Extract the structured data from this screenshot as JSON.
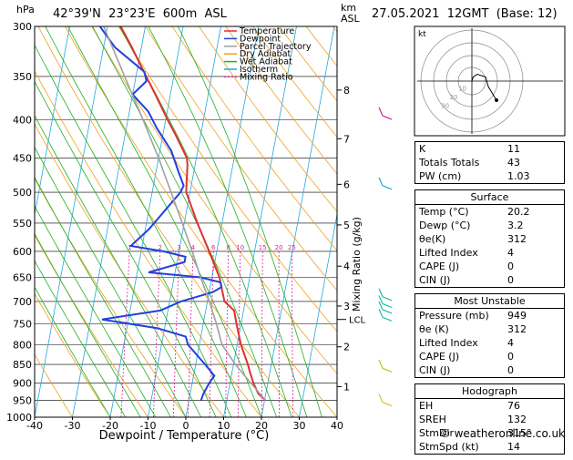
{
  "header": {
    "location": "42°39'N  23°23'E  600m  ASL",
    "datetime": "27.05.2021  12GMT  (Base: 12)",
    "y_unit": "hPa",
    "km_label": "km\nASL",
    "x_axis_title": "Dewpoint / Temperature (°C)",
    "mixing_axis_title": "Mixing Ratio (g/kg)",
    "credit": "© weatheronline.co.uk",
    "hodo_unit": "kt"
  },
  "colors": {
    "temperature": "#e03030",
    "dewpoint": "#2040e0",
    "parcel": "#a0a0a0",
    "dry_adiabat": "#f0a020",
    "wet_adiabat": "#20b020",
    "isotherm": "#20a8e0",
    "mixing_ratio": "#e020a0"
  },
  "legend": [
    {
      "label": "Temperature",
      "key": "temperature",
      "dash": false
    },
    {
      "label": "Dewpoint",
      "key": "dewpoint",
      "dash": false
    },
    {
      "label": "Parcel Trajectory",
      "key": "parcel",
      "dash": false
    },
    {
      "label": "Dry Adiabat",
      "key": "dry_adiabat",
      "dash": false
    },
    {
      "label": "Wet Adiabat",
      "key": "wet_adiabat",
      "dash": false
    },
    {
      "label": "Isotherm",
      "key": "isotherm",
      "dash": false
    },
    {
      "label": "Mixing Ratio",
      "key": "mixing_ratio",
      "dash": true
    }
  ],
  "chart_data": {
    "type": "line",
    "xlim": [
      -40,
      40
    ],
    "ylim": [
      1000,
      300
    ],
    "y_scale": "log",
    "pressure_ticks": [
      300,
      350,
      400,
      450,
      500,
      550,
      600,
      650,
      700,
      750,
      800,
      850,
      900,
      950,
      1000
    ],
    "temp_ticks": [
      -40,
      -30,
      -20,
      -10,
      0,
      10,
      20,
      30,
      40
    ],
    "km_ticks": [
      {
        "km": "1",
        "p": 910
      },
      {
        "km": "2",
        "p": 805
      },
      {
        "km": "3",
        "p": 710
      },
      {
        "km": "4",
        "p": 628
      },
      {
        "km": "5",
        "p": 553
      },
      {
        "km": "6",
        "p": 488
      },
      {
        "km": "7",
        "p": 424
      },
      {
        "km": "8",
        "p": 365
      }
    ],
    "lcl": {
      "label": "LCL",
      "p": 740
    },
    "mixing_ratio_labels": [
      "1",
      "2",
      "3",
      "4",
      "6",
      "8",
      "10",
      "15",
      "20",
      "25"
    ],
    "mixing_ratio_values": [
      1,
      2,
      3,
      4,
      6,
      8,
      10,
      15,
      20,
      25
    ],
    "series": [
      {
        "name": "Temperature",
        "key": "temperature",
        "points": [
          [
            949,
            20.2
          ],
          [
            930,
            18
          ],
          [
            900,
            16.2
          ],
          [
            870,
            14.7
          ],
          [
            850,
            13.8
          ],
          [
            800,
            11.0
          ],
          [
            750,
            8.8
          ],
          [
            720,
            7.5
          ],
          [
            700,
            4.5
          ],
          [
            650,
            2.0
          ],
          [
            600,
            -2.0
          ],
          [
            550,
            -6.5
          ],
          [
            500,
            -11.0
          ],
          [
            480,
            -11.5
          ],
          [
            460,
            -12.0
          ],
          [
            450,
            -12.5
          ],
          [
            420,
            -16.5
          ],
          [
            400,
            -19.5
          ],
          [
            370,
            -24.0
          ],
          [
            340,
            -29.0
          ],
          [
            320,
            -32.5
          ],
          [
            300,
            -36.5
          ]
        ]
      },
      {
        "name": "Dewpoint",
        "key": "dewpoint",
        "points": [
          [
            949,
            3.2
          ],
          [
            930,
            3.5
          ],
          [
            900,
            4.5
          ],
          [
            880,
            5.5
          ],
          [
            850,
            2.5
          ],
          [
            800,
            -3.0
          ],
          [
            780,
            -4.0
          ],
          [
            760,
            -12.0
          ],
          [
            740,
            -27.0
          ],
          [
            720,
            -12.0
          ],
          [
            700,
            -7.0
          ],
          [
            690,
            -3.0
          ],
          [
            680,
            1.0
          ],
          [
            670,
            3.0
          ],
          [
            660,
            2.5
          ],
          [
            650,
            -3.0
          ],
          [
            640,
            -17.0
          ],
          [
            620,
            -8.0
          ],
          [
            610,
            -8.0
          ],
          [
            600,
            -14.0
          ],
          [
            590,
            -23.0
          ],
          [
            560,
            -19.0
          ],
          [
            500,
            -12.5
          ],
          [
            490,
            -12.0
          ],
          [
            470,
            -14.0
          ],
          [
            440,
            -17.0
          ],
          [
            410,
            -22.0
          ],
          [
            390,
            -25.0
          ],
          [
            370,
            -30.0
          ],
          [
            355,
            -27.0
          ],
          [
            345,
            -28.0
          ],
          [
            320,
            -37.0
          ],
          [
            300,
            -42.0
          ]
        ]
      },
      {
        "name": "Parcel Trajectory",
        "key": "parcel",
        "points": [
          [
            949,
            20.2
          ],
          [
            900,
            15.5
          ],
          [
            850,
            10.5
          ],
          [
            800,
            6.0
          ],
          [
            750,
            3.5
          ],
          [
            700,
            0.5
          ],
          [
            650,
            -3.0
          ],
          [
            600,
            -6.5
          ],
          [
            550,
            -10.5
          ],
          [
            500,
            -15.0
          ],
          [
            450,
            -20.0
          ],
          [
            400,
            -26.0
          ],
          [
            350,
            -33.0
          ],
          [
            300,
            -41.0
          ]
        ]
      }
    ],
    "wind_barbs": [
      {
        "p": 395,
        "color": "#d020a0"
      },
      {
        "p": 490,
        "color": "#20a8d0"
      },
      {
        "p": 690,
        "color": "#20c0a0"
      },
      {
        "p": 705,
        "color": "#20c0a0"
      },
      {
        "p": 718,
        "color": "#20c0a0"
      },
      {
        "p": 735,
        "color": "#20c0a0"
      },
      {
        "p": 860,
        "color": "#a0d020"
      },
      {
        "p": 955,
        "color": "#e0c020"
      }
    ]
  },
  "hodograph": {
    "ring_labels": [
      "10",
      "20",
      "30"
    ],
    "points": [
      [
        0,
        0
      ],
      [
        1,
        3
      ],
      [
        4,
        5
      ],
      [
        10,
        3
      ],
      [
        12,
        -4
      ],
      [
        18,
        -14
      ]
    ]
  },
  "indices": [
    {
      "label": "K",
      "value": "11"
    },
    {
      "label": "Totals Totals",
      "value": "43"
    },
    {
      "label": "PW (cm)",
      "value": "1.03"
    }
  ],
  "surface": {
    "title": "Surface",
    "rows": [
      {
        "label": "Temp (°C)",
        "value": "20.2"
      },
      {
        "label": "Dewp (°C)",
        "value": "3.2"
      },
      {
        "label": "θe(K)",
        "value": "312"
      },
      {
        "label": "Lifted Index",
        "value": "4"
      },
      {
        "label": "CAPE (J)",
        "value": "0"
      },
      {
        "label": "CIN (J)",
        "value": "0"
      }
    ]
  },
  "most_unstable": {
    "title": "Most Unstable",
    "rows": [
      {
        "label": "Pressure (mb)",
        "value": "949"
      },
      {
        "label": "θe (K)",
        "value": "312"
      },
      {
        "label": "Lifted Index",
        "value": "4"
      },
      {
        "label": "CAPE (J)",
        "value": "0"
      },
      {
        "label": "CIN (J)",
        "value": "0"
      }
    ]
  },
  "hodo_table": {
    "title": "Hodograph",
    "rows": [
      {
        "label": "EH",
        "value": "76"
      },
      {
        "label": "SREH",
        "value": "132"
      },
      {
        "label": "StmDir",
        "value": "315°"
      },
      {
        "label": "StmSpd (kt)",
        "value": "14"
      }
    ]
  }
}
